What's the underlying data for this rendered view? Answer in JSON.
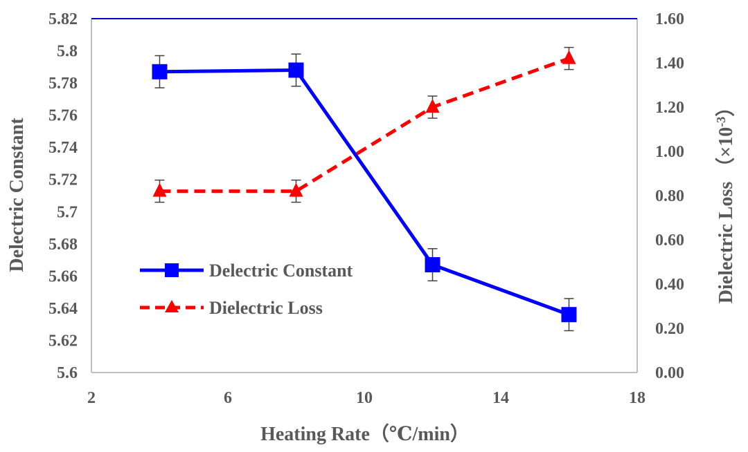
{
  "chart_data": {
    "type": "line",
    "title": "",
    "xlabel": "Heating Rate（℃/min）",
    "ylabel_left": "Delectric Constant",
    "ylabel_right": "Dielectric Loss （×10",
    "ylabel_right_exponent": "-3",
    "ylabel_right_close": "）",
    "xlim": [
      2,
      18
    ],
    "ylim_left": [
      5.6,
      5.82
    ],
    "ylim_right": [
      0,
      1.6
    ],
    "x_ticks": [
      2,
      6,
      10,
      14,
      18
    ],
    "x_tick_labels": [
      "2",
      "6",
      "10",
      "14",
      "18"
    ],
    "y_left_ticks": [
      5.6,
      5.62,
      5.64,
      5.66,
      5.68,
      5.7,
      5.72,
      5.74,
      5.76,
      5.78,
      5.8,
      5.82
    ],
    "y_left_tick_labels": [
      "5.6",
      "5.62",
      "5.64",
      "5.66",
      "5.68",
      "5.7",
      "5.72",
      "5.74",
      "5.76",
      "5.78",
      "5.8",
      "5.82"
    ],
    "y_right_ticks": [
      0,
      0.2,
      0.4,
      0.6,
      0.8,
      1.0,
      1.2,
      1.4,
      1.6
    ],
    "y_right_tick_labels": [
      "0.00",
      "0.20",
      "0.40",
      "0.60",
      "0.80",
      "1.00",
      "1.20",
      "1.40",
      "1.60"
    ],
    "legend_position": "lower-left",
    "grid": false,
    "series": [
      {
        "name": "Delectric Constant",
        "axis": "left",
        "color": "#0000ff",
        "line_style": "solid",
        "marker": "square",
        "x": [
          4,
          8,
          12,
          16
        ],
        "values": [
          5.787,
          5.788,
          5.667,
          5.636
        ],
        "error": [
          0.01,
          0.01,
          0.01,
          0.01
        ]
      },
      {
        "name": "Dielectric Loss",
        "axis": "right",
        "color": "#ff0000",
        "line_style": "dashed",
        "marker": "triangle",
        "x": [
          4,
          8,
          12,
          16
        ],
        "values": [
          0.82,
          0.82,
          1.2,
          1.42
        ],
        "error": [
          0.05,
          0.05,
          0.05,
          0.05
        ]
      }
    ]
  },
  "colors": {
    "plot_border_top": "#0000cc",
    "axis": "#bfbfbf",
    "text": "#595959",
    "error_bar": "#404040"
  }
}
